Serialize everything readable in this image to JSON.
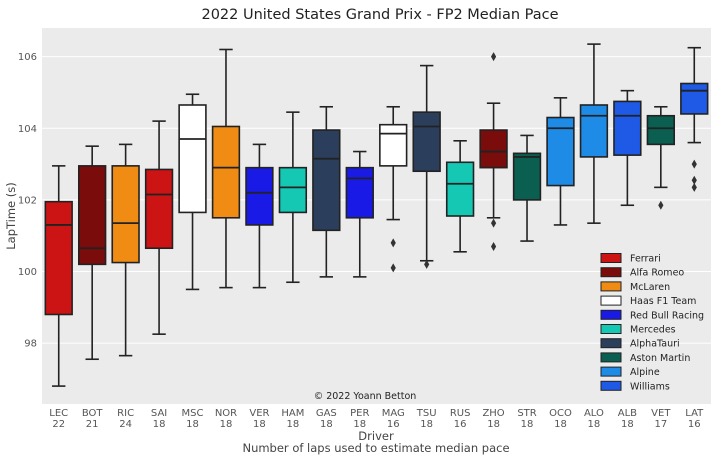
{
  "chart_data": {
    "type": "box",
    "title": "2022 United States Grand Prix - FP2 Median Pace",
    "xlabel": "Driver",
    "xlabel_sub": "Number of laps used to estimate median pace",
    "ylabel": "LapTime (s)",
    "ylim": [
      96.3,
      106.8
    ],
    "yticks": [
      98,
      100,
      102,
      104,
      106
    ],
    "grid": true,
    "legend_position": "bottom-right",
    "annotation": "© 2022 Yoann Betton",
    "drivers": [
      {
        "code": "LEC",
        "laps": "22",
        "team": "Ferrari",
        "color": "#cc1414",
        "whisker_low": 96.8,
        "q1": 98.8,
        "median": 101.3,
        "q3": 101.95,
        "whisker_high": 102.95,
        "outliers": []
      },
      {
        "code": "BOT",
        "laps": "21",
        "team": "Alfa Romeo",
        "color": "#7a0c0c",
        "whisker_low": 97.55,
        "q1": 100.2,
        "median": 100.65,
        "q3": 102.95,
        "whisker_high": 103.5,
        "outliers": []
      },
      {
        "code": "RIC",
        "laps": "24",
        "team": "McLaren",
        "color": "#f08c14",
        "whisker_low": 97.65,
        "q1": 100.25,
        "median": 101.35,
        "q3": 102.95,
        "whisker_high": 103.55,
        "outliers": []
      },
      {
        "code": "SAI",
        "laps": "18",
        "team": "Ferrari",
        "color": "#cc1414",
        "whisker_low": 98.25,
        "q1": 100.65,
        "median": 102.15,
        "q3": 102.85,
        "whisker_high": 104.2,
        "outliers": []
      },
      {
        "code": "MSC",
        "laps": "18",
        "team": "Haas F1 Team",
        "color": "#ffffff",
        "whisker_low": 99.5,
        "q1": 101.65,
        "median": 103.7,
        "q3": 104.65,
        "whisker_high": 104.95,
        "outliers": []
      },
      {
        "code": "NOR",
        "laps": "18",
        "team": "McLaren",
        "color": "#f08c14",
        "whisker_low": 99.55,
        "q1": 101.5,
        "median": 102.9,
        "q3": 104.05,
        "whisker_high": 106.2,
        "outliers": []
      },
      {
        "code": "VER",
        "laps": "18",
        "team": "Red Bull Racing",
        "color": "#1a1ae6",
        "whisker_low": 99.55,
        "q1": 101.3,
        "median": 102.2,
        "q3": 102.9,
        "whisker_high": 103.55,
        "outliers": []
      },
      {
        "code": "HAM",
        "laps": "18",
        "team": "Mercedes",
        "color": "#14c8b4",
        "whisker_low": 99.7,
        "q1": 101.65,
        "median": 102.35,
        "q3": 102.9,
        "whisker_high": 104.45,
        "outliers": []
      },
      {
        "code": "GAS",
        "laps": "18",
        "team": "AlphaTauri",
        "color": "#2b3f5c",
        "whisker_low": 99.85,
        "q1": 101.15,
        "median": 103.15,
        "q3": 103.95,
        "whisker_high": 104.6,
        "outliers": []
      },
      {
        "code": "PER",
        "laps": "18",
        "team": "Red Bull Racing",
        "color": "#1a1ae6",
        "whisker_low": 99.85,
        "q1": 101.5,
        "median": 102.6,
        "q3": 102.9,
        "whisker_high": 103.35,
        "outliers": []
      },
      {
        "code": "MAG",
        "laps": "16",
        "team": "Haas F1 Team",
        "color": "#ffffff",
        "whisker_low": 101.45,
        "q1": 102.95,
        "median": 103.85,
        "q3": 104.1,
        "whisker_high": 104.6,
        "outliers": [
          100.8,
          100.1
        ]
      },
      {
        "code": "TSU",
        "laps": "18",
        "team": "AlphaTauri",
        "color": "#2b3f5c",
        "whisker_low": 100.3,
        "q1": 102.8,
        "median": 104.05,
        "q3": 104.45,
        "whisker_high": 105.75,
        "outliers": [
          100.2
        ]
      },
      {
        "code": "RUS",
        "laps": "16",
        "team": "Mercedes",
        "color": "#14c8b4",
        "whisker_low": 100.55,
        "q1": 101.55,
        "median": 102.45,
        "q3": 103.05,
        "whisker_high": 103.65,
        "outliers": []
      },
      {
        "code": "ZHO",
        "laps": "18",
        "team": "Alfa Romeo",
        "color": "#7a0c0c",
        "whisker_low": 101.5,
        "q1": 102.9,
        "median": 103.35,
        "q3": 103.95,
        "whisker_high": 104.7,
        "outliers": [
          106.0,
          101.35,
          100.7
        ]
      },
      {
        "code": "STR",
        "laps": "18",
        "team": "Aston Martin",
        "color": "#0a5f50",
        "whisker_low": 100.85,
        "q1": 102.0,
        "median": 103.2,
        "q3": 103.3,
        "whisker_high": 103.8,
        "outliers": []
      },
      {
        "code": "OCO",
        "laps": "18",
        "team": "Alpine",
        "color": "#1e8ce6",
        "whisker_low": 101.3,
        "q1": 102.4,
        "median": 104.0,
        "q3": 104.3,
        "whisker_high": 104.85,
        "outliers": []
      },
      {
        "code": "ALO",
        "laps": "18",
        "team": "Alpine",
        "color": "#1e8ce6",
        "whisker_low": 101.35,
        "q1": 103.2,
        "median": 104.35,
        "q3": 104.65,
        "whisker_high": 106.35,
        "outliers": []
      },
      {
        "code": "ALB",
        "laps": "18",
        "team": "Williams",
        "color": "#1e5ae6",
        "whisker_low": 101.85,
        "q1": 103.25,
        "median": 104.35,
        "q3": 104.75,
        "whisker_high": 105.05,
        "outliers": []
      },
      {
        "code": "VET",
        "laps": "17",
        "team": "Aston Martin",
        "color": "#0a5f50",
        "whisker_low": 102.35,
        "q1": 103.55,
        "median": 104.0,
        "q3": 104.35,
        "whisker_high": 104.6,
        "outliers": [
          101.85
        ]
      },
      {
        "code": "LAT",
        "laps": "16",
        "team": "Williams",
        "color": "#1e5ae6",
        "whisker_low": 103.6,
        "q1": 104.4,
        "median": 105.05,
        "q3": 105.25,
        "whisker_high": 106.25,
        "outliers": [
          103.0,
          102.55,
          102.35
        ]
      }
    ],
    "legend": [
      {
        "label": "Ferrari",
        "color": "#cc1414"
      },
      {
        "label": "Alfa Romeo",
        "color": "#7a0c0c"
      },
      {
        "label": "McLaren",
        "color": "#f08c14"
      },
      {
        "label": "Haas F1 Team",
        "color": "#ffffff"
      },
      {
        "label": "Red Bull Racing",
        "color": "#1a1ae6"
      },
      {
        "label": "Mercedes",
        "color": "#14c8b4"
      },
      {
        "label": "AlphaTauri",
        "color": "#2b3f5c"
      },
      {
        "label": "Aston Martin",
        "color": "#0a5f50"
      },
      {
        "label": "Alpine",
        "color": "#1e8ce6"
      },
      {
        "label": "Williams",
        "color": "#1e5ae6"
      }
    ]
  }
}
